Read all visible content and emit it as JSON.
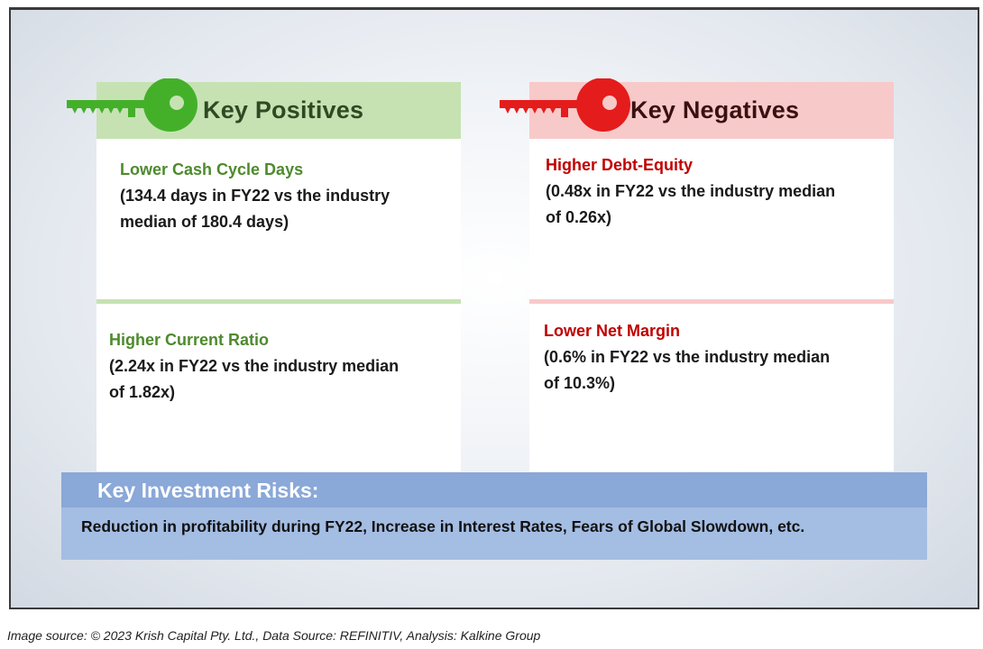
{
  "positives": {
    "header": "Key Positives",
    "items": [
      {
        "title": "Lower Cash Cycle Days",
        "body_line1": "(134.4 days in FY22 vs the industry",
        "body_line2": "median of 180.4 days)"
      },
      {
        "title": "Higher Current Ratio",
        "body_line1": "(2.24x in FY22 vs the industry median",
        "body_line2": "of 1.82x)"
      }
    ]
  },
  "negatives": {
    "header": "Key Negatives",
    "items": [
      {
        "title": "Higher Debt-Equity",
        "body_line1": "(0.48x in FY22 vs the industry median",
        "body_line2": "of 0.26x)"
      },
      {
        "title": "Lower Net Margin",
        "body_line1": "(0.6% in FY22 vs the industry median",
        "body_line2": "of 10.3%)"
      }
    ]
  },
  "risks": {
    "header": "Key Investment Risks:",
    "text": "Reduction in profitability during FY22, Increase in Interest Rates, Fears of Global Slowdown, etc."
  },
  "source": "Image source: © 2023 Krish Capital Pty. Ltd., Data Source: REFINITIV, Analysis: Kalkine Group",
  "icons": {
    "positive": "green-key-icon",
    "negative": "red-key-icon"
  },
  "colors": {
    "positive_accent": "#44b02a",
    "negative_accent": "#e51c1c",
    "positive_header_bg": "#c6e2b3",
    "negative_header_bg": "#f8c9c9",
    "risk_header_bg": "#8aa8d8"
  }
}
